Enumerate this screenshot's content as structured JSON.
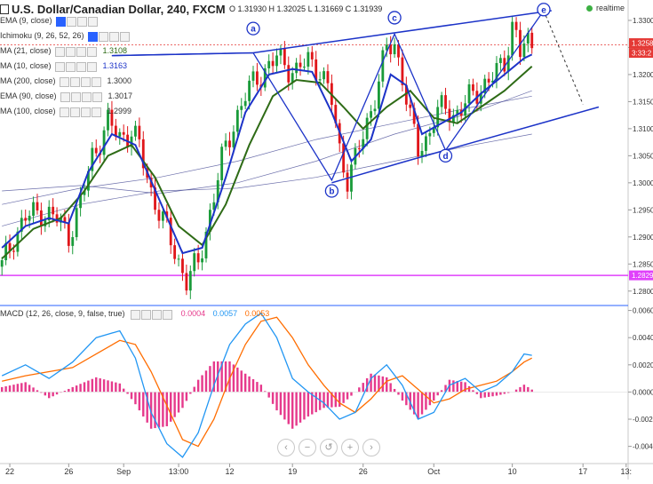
{
  "header": {
    "title": "U.S. Dollar/Canadian Dollar, 240, FXCM",
    "ohlc": "O 1.31930 H 1.32025 L 1.31669 C 1.31939",
    "realtime_label": "realtime"
  },
  "legends": [
    {
      "label": "EMA (9, close)",
      "value": "",
      "color": "#333333"
    },
    {
      "label": "Ichimoku (9, 26, 52, 26)",
      "value": "",
      "color": "#999999"
    },
    {
      "label": "MA (21, close)",
      "value": "1.3108",
      "color": "#2e6b16"
    },
    {
      "label": "MA (10, close)",
      "value": "1.3163",
      "color": "#1c33c8"
    },
    {
      "label": "MA (200, close)",
      "value": "1.3000",
      "color": "#333333"
    },
    {
      "label": "EMA (90, close)",
      "value": "1.3017",
      "color": "#333333"
    },
    {
      "label": "MA (100, close)",
      "value": "1.2999",
      "color": "#333333"
    }
  ],
  "macd_legend": {
    "label": "MACD (12, 26, close, 9, false, true)",
    "values": [
      "0.0004",
      "0.0057",
      "0.0053"
    ],
    "colors": [
      "#e63a8c",
      "#2196f3",
      "#ff6d00"
    ]
  },
  "price_tags": [
    {
      "text": "1.3258",
      "value": 1.3258,
      "color": "#e53935"
    },
    {
      "text": "3:33:2",
      "value": 1.3237,
      "color": "#e53935"
    },
    {
      "text": "1.2829",
      "value": 1.2829,
      "color": "#e040fb"
    }
  ],
  "nav_buttons": [
    {
      "name": "scroll-left-button",
      "glyph": "‹"
    },
    {
      "name": "zoom-out-button",
      "glyph": "−"
    },
    {
      "name": "reset-button",
      "glyph": "↺"
    },
    {
      "name": "zoom-in-button",
      "glyph": "+"
    },
    {
      "name": "scroll-right-button",
      "glyph": "›"
    }
  ],
  "chart_data": {
    "type": "candlestick",
    "price_axis": {
      "ticks": [
        1.33,
        1.325,
        1.32,
        1.315,
        1.31,
        1.305,
        1.3,
        1.295,
        1.29,
        1.285,
        1.28
      ],
      "labels": [
        "1.3300",
        "1.3250",
        "1.3200",
        "1.3150",
        "1.3100",
        "1.3050",
        "1.3000",
        "1.2950",
        "1.2900",
        "1.2850",
        "1.2800"
      ],
      "range": [
        1.2775,
        1.3318
      ]
    },
    "macd_axis": {
      "ticks": [
        0.006,
        0.004,
        0.002,
        0.0,
        -0.002,
        -0.004
      ],
      "labels": [
        "0.0060",
        "0.0040",
        "0.0020",
        "0.0000",
        "-0.0020",
        "-0.0040"
      ],
      "range": [
        -0.0052,
        0.0063
      ]
    },
    "time_axis": {
      "labels": [
        "22",
        "26",
        "Sep",
        "13:00",
        "12",
        "19",
        "26",
        "Oct",
        "10",
        "17",
        "13:"
      ],
      "bar_index": [
        2,
        17,
        31,
        45,
        58,
        74,
        92,
        110,
        130,
        148,
        159
      ]
    },
    "bars_count": 160,
    "price_path": [
      [
        0,
        1.2845
      ],
      [
        3,
        1.29
      ],
      [
        6,
        1.2935
      ],
      [
        10,
        1.2948
      ],
      [
        14,
        1.2932
      ],
      [
        17,
        1.2905
      ],
      [
        20,
        1.296
      ],
      [
        23,
        1.305
      ],
      [
        27,
        1.311
      ],
      [
        30,
        1.3085
      ],
      [
        33,
        1.3095
      ],
      [
        35,
        1.3065
      ],
      [
        38,
        1.2985
      ],
      [
        42,
        1.291
      ],
      [
        45,
        1.2855
      ],
      [
        47,
        1.282
      ],
      [
        50,
        1.285
      ],
      [
        53,
        1.2945
      ],
      [
        56,
        1.304
      ],
      [
        59,
        1.311
      ],
      [
        62,
        1.316
      ],
      [
        65,
        1.3195
      ],
      [
        68,
        1.3215
      ],
      [
        70,
        1.323
      ],
      [
        72,
        1.322
      ],
      [
        75,
        1.3205
      ],
      [
        78,
        1.3225
      ],
      [
        81,
        1.321
      ],
      [
        84,
        1.315
      ],
      [
        86,
        1.306
      ],
      [
        88,
        1.301
      ],
      [
        90,
        1.304
      ],
      [
        93,
        1.311
      ],
      [
        96,
        1.319
      ],
      [
        98,
        1.3245
      ],
      [
        100,
        1.3255
      ],
      [
        102,
        1.32
      ],
      [
        104,
        1.3115
      ],
      [
        106,
        1.306
      ],
      [
        108,
        1.308
      ],
      [
        110,
        1.312
      ],
      [
        113,
        1.314
      ],
      [
        115,
        1.3125
      ],
      [
        118,
        1.3145
      ],
      [
        121,
        1.317
      ],
      [
        124,
        1.319
      ],
      [
        126,
        1.32
      ],
      [
        128,
        1.3225
      ],
      [
        130,
        1.329
      ],
      [
        131,
        1.3275
      ],
      [
        132,
        1.324
      ],
      [
        134,
        1.3255
      ],
      [
        135,
        1.3258
      ]
    ],
    "ma10_path": [
      [
        0,
        1.288
      ],
      [
        6,
        1.292
      ],
      [
        12,
        1.2935
      ],
      [
        17,
        1.2925
      ],
      [
        22,
        1.302
      ],
      [
        28,
        1.309
      ],
      [
        34,
        1.307
      ],
      [
        40,
        1.297
      ],
      [
        46,
        1.287
      ],
      [
        51,
        1.288
      ],
      [
        57,
        1.301
      ],
      [
        62,
        1.313
      ],
      [
        68,
        1.32
      ],
      [
        74,
        1.321
      ],
      [
        79,
        1.3205
      ],
      [
        84,
        1.313
      ],
      [
        89,
        1.304
      ],
      [
        94,
        1.308
      ],
      [
        99,
        1.32
      ],
      [
        103,
        1.318
      ],
      [
        107,
        1.309
      ],
      [
        112,
        1.311
      ],
      [
        117,
        1.313
      ],
      [
        122,
        1.3165
      ],
      [
        128,
        1.32
      ],
      [
        133,
        1.323
      ],
      [
        135,
        1.3237
      ]
    ],
    "ma21_path": [
      [
        0,
        1.286
      ],
      [
        8,
        1.2915
      ],
      [
        15,
        1.2935
      ],
      [
        21,
        1.2985
      ],
      [
        27,
        1.305
      ],
      [
        33,
        1.307
      ],
      [
        39,
        1.301
      ],
      [
        45,
        1.292
      ],
      [
        51,
        1.2885
      ],
      [
        57,
        1.296
      ],
      [
        63,
        1.307
      ],
      [
        69,
        1.316
      ],
      [
        75,
        1.319
      ],
      [
        81,
        1.3185
      ],
      [
        87,
        1.314
      ],
      [
        92,
        1.31
      ],
      [
        98,
        1.314
      ],
      [
        104,
        1.317
      ],
      [
        110,
        1.312
      ],
      [
        116,
        1.311
      ],
      [
        122,
        1.314
      ],
      [
        128,
        1.317
      ],
      [
        135,
        1.3215
      ]
    ],
    "slow_ma_paths": [
      [
        [
          0,
          1.296
        ],
        [
          20,
          1.299
        ],
        [
          40,
          1.301
        ],
        [
          60,
          1.304
        ],
        [
          80,
          1.308
        ],
        [
          100,
          1.311
        ],
        [
          120,
          1.314
        ],
        [
          135,
          1.316
        ]
      ],
      [
        [
          0,
          1.2985
        ],
        [
          20,
          1.2995
        ],
        [
          40,
          1.298
        ],
        [
          60,
          1.3
        ],
        [
          80,
          1.304
        ],
        [
          100,
          1.309
        ],
        [
          120,
          1.313
        ],
        [
          135,
          1.317
        ]
      ],
      [
        [
          0,
          1.292
        ],
        [
          20,
          1.296
        ],
        [
          40,
          1.2985
        ],
        [
          60,
          1.299
        ],
        [
          80,
          1.301
        ],
        [
          100,
          1.304
        ],
        [
          120,
          1.307
        ],
        [
          135,
          1.309
        ]
      ]
    ],
    "support_level": 1.2829,
    "dashed_level": 1.3255,
    "annotations": {
      "channel_upper": [
        [
          28,
          1.3235
        ],
        [
          64,
          1.324
        ],
        [
          140,
          1.3318
        ]
      ],
      "channel_lower": [
        [
          84,
          1.3
        ],
        [
          103,
          1.304
        ],
        [
          152,
          1.314
        ]
      ],
      "swing_path": [
        [
          28,
          1.3235
        ],
        [
          64,
          1.324
        ],
        [
          84,
          1.3005
        ],
        [
          100,
          1.3275
        ],
        [
          113,
          1.306
        ],
        [
          138,
          1.3318
        ],
        [
          148,
          1.3145
        ]
      ],
      "projection_dashed": [
        [
          138,
          1.3318
        ],
        [
          148,
          1.3145
        ]
      ],
      "labels": [
        {
          "text": "a",
          "bar": 64,
          "price": 1.3285
        },
        {
          "text": "b",
          "bar": 84,
          "price": 1.2985
        },
        {
          "text": "c",
          "bar": 100,
          "price": 1.3305
        },
        {
          "text": "d",
          "bar": 113,
          "price": 1.305
        },
        {
          "text": "e",
          "bar": 138,
          "price": 1.332
        }
      ]
    },
    "macd_line": [
      [
        0,
        0.0012
      ],
      [
        6,
        0.002
      ],
      [
        12,
        0.001
      ],
      [
        18,
        0.0022
      ],
      [
        24,
        0.004
      ],
      [
        30,
        0.0045
      ],
      [
        34,
        0.0025
      ],
      [
        38,
        -0.0015
      ],
      [
        42,
        -0.0038
      ],
      [
        46,
        -0.0048
      ],
      [
        50,
        -0.003
      ],
      [
        54,
        0.0005
      ],
      [
        58,
        0.0035
      ],
      [
        62,
        0.005
      ],
      [
        66,
        0.0058
      ],
      [
        70,
        0.004
      ],
      [
        74,
        0.001
      ],
      [
        78,
        0.0
      ],
      [
        82,
        -0.0008
      ],
      [
        86,
        -0.002
      ],
      [
        90,
        -0.0015
      ],
      [
        94,
        0.001
      ],
      [
        98,
        0.002
      ],
      [
        102,
        0.0005
      ],
      [
        106,
        -0.002
      ],
      [
        110,
        -0.0015
      ],
      [
        114,
        0.0005
      ],
      [
        118,
        0.001
      ],
      [
        122,
        0.0
      ],
      [
        126,
        0.0005
      ],
      [
        130,
        0.0015
      ],
      [
        133,
        0.0028
      ],
      [
        135,
        0.0027
      ]
    ],
    "signal_line": [
      [
        0,
        0.0008
      ],
      [
        6,
        0.0012
      ],
      [
        12,
        0.0015
      ],
      [
        18,
        0.0018
      ],
      [
        24,
        0.0028
      ],
      [
        30,
        0.0038
      ],
      [
        34,
        0.0035
      ],
      [
        38,
        0.0015
      ],
      [
        42,
        -0.001
      ],
      [
        46,
        -0.0035
      ],
      [
        50,
        -0.004
      ],
      [
        54,
        -0.002
      ],
      [
        58,
        0.001
      ],
      [
        62,
        0.0035
      ],
      [
        66,
        0.0052
      ],
      [
        70,
        0.0055
      ],
      [
        74,
        0.004
      ],
      [
        78,
        0.002
      ],
      [
        82,
        0.0005
      ],
      [
        86,
        -0.0008
      ],
      [
        90,
        -0.0015
      ],
      [
        94,
        -0.0005
      ],
      [
        98,
        0.0008
      ],
      [
        102,
        0.0012
      ],
      [
        106,
        0.0002
      ],
      [
        110,
        -0.0008
      ],
      [
        114,
        -0.0005
      ],
      [
        118,
        0.0002
      ],
      [
        122,
        0.0005
      ],
      [
        126,
        0.0008
      ],
      [
        130,
        0.0015
      ],
      [
        133,
        0.0022
      ],
      [
        135,
        0.0025
      ]
    ]
  }
}
